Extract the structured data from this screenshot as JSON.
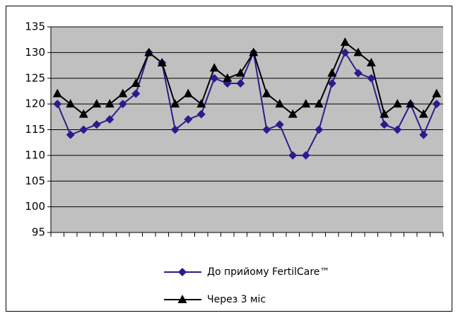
{
  "chart_data": {
    "type": "line",
    "categories": [
      null,
      null,
      null,
      null,
      null,
      null,
      null,
      null,
      null,
      null,
      null,
      null,
      null,
      null,
      null,
      null,
      null,
      null,
      null,
      null,
      null,
      null,
      null,
      null,
      null,
      null,
      null,
      null,
      null,
      null
    ],
    "series": [
      {
        "name": "До прийому FertilCare™",
        "color": "#2e1a8c",
        "marker": "diamond",
        "values": [
          120,
          114,
          115,
          116,
          117,
          120,
          122,
          130,
          128,
          115,
          117,
          118,
          125,
          124,
          124,
          130,
          115,
          116,
          110,
          110,
          115,
          124,
          130,
          126,
          125,
          116,
          115,
          120,
          114,
          120
        ]
      },
      {
        "name": "Через 3 міс",
        "color": "#000000",
        "marker": "triangle",
        "values": [
          122,
          120,
          118,
          120,
          120,
          122,
          124,
          130,
          128,
          120,
          122,
          120,
          127,
          125,
          126,
          130,
          122,
          120,
          118,
          120,
          120,
          126,
          132,
          130,
          128,
          118,
          120,
          120,
          118,
          122
        ]
      }
    ],
    "ylim": [
      95,
      135
    ],
    "yticks": [
      95,
      100,
      105,
      110,
      115,
      120,
      125,
      130,
      135
    ],
    "grid": true,
    "legend": "bottom",
    "plot_background": "#c0c0c0"
  }
}
